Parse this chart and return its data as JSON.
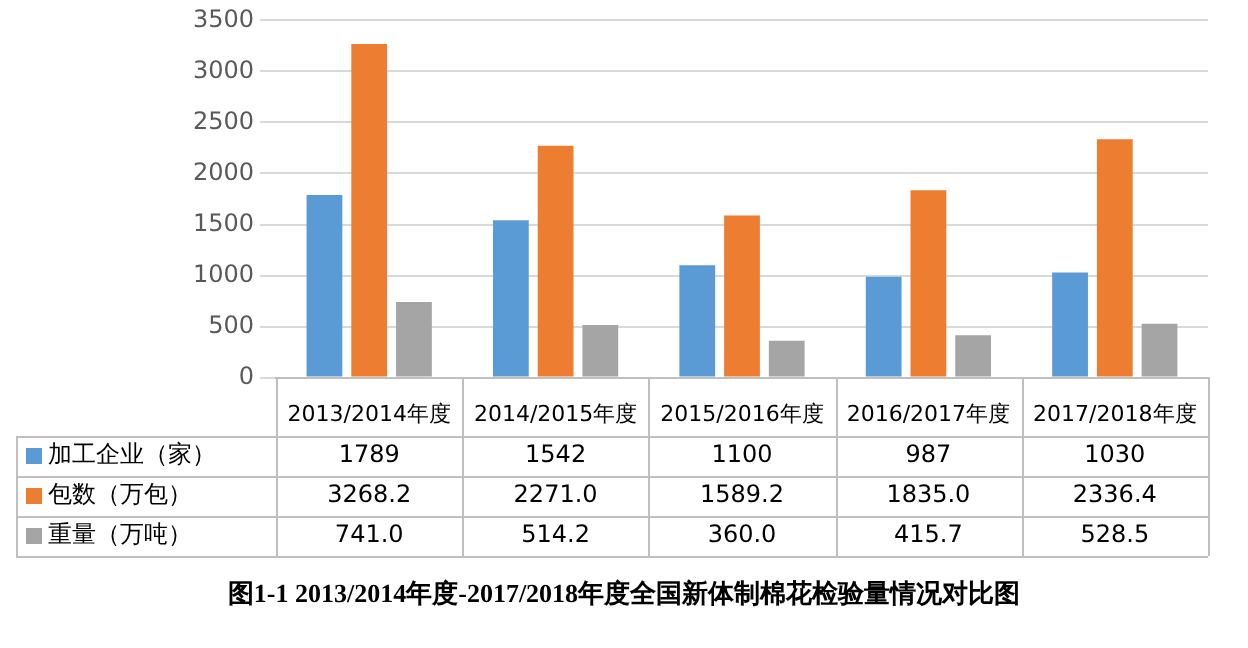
{
  "chart_data": {
    "type": "bar",
    "title": "图1-1 2013/2014年度-2017/2018年度全国新体制棉花检验量情况对比图",
    "categories": [
      "2013/2014年度",
      "2014/2015年度",
      "2015/2016年度",
      "2016/2017年度",
      "2017/2018年度"
    ],
    "series": [
      {
        "name": "加工企业（家）",
        "color": "#5b9bd5",
        "values": [
          1789,
          1542,
          1100,
          987,
          1030
        ],
        "value_labels": [
          "1789",
          "1542",
          "1100",
          "987",
          "1030"
        ]
      },
      {
        "name": "包数（万包）",
        "color": "#ed7d31",
        "values": [
          3268.2,
          2271.0,
          1589.2,
          1835.0,
          2336.4
        ],
        "value_labels": [
          "3268.2",
          "2271.0",
          "1589.2",
          "1835.0",
          "2336.4"
        ]
      },
      {
        "name": "重量（万吨）",
        "color": "#a5a5a5",
        "values": [
          741.0,
          514.2,
          360.0,
          415.7,
          528.5
        ],
        "value_labels": [
          "741.0",
          "514.2",
          "360.0",
          "415.7",
          "528.5"
        ]
      }
    ],
    "ylim": [
      0,
      3500
    ],
    "yticks": [
      0,
      500,
      1000,
      1500,
      2000,
      2500,
      3000,
      3500
    ],
    "grid": "y",
    "legend": "bottom"
  }
}
